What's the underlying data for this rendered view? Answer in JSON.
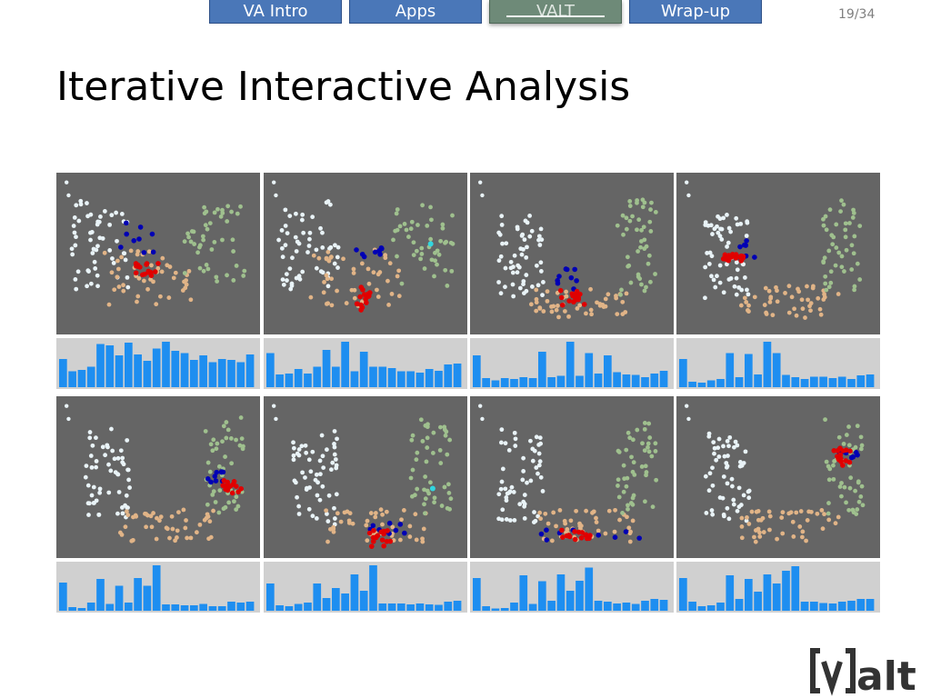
{
  "nav": {
    "tabs": [
      {
        "label": "VA Intro",
        "active": false
      },
      {
        "label": "Apps",
        "active": false
      },
      {
        "label": "VALT",
        "active": true
      },
      {
        "label": "Wrap-up",
        "active": false
      }
    ],
    "page_indicator": "19/34"
  },
  "title": "Iterative Interactive Analysis",
  "logo": {
    "text": "[v]alt"
  },
  "colors": {
    "white_cluster": "#e9f3f7",
    "orange_cluster": "#e1b487",
    "green_cluster": "#9fc08e",
    "selected_red": "#e00000",
    "selected_blue": "#0000b4",
    "cyan_point": "#31d6df",
    "histogram_bar": "#1e8ef0",
    "scatter_background": "#656565",
    "histogram_background": "#d0d0d0"
  },
  "panels": [
    {
      "red": [
        [
          0.42,
          0.59
        ],
        [
          0.47,
          0.61
        ]
      ],
      "blue": [
        [
          0.33,
          0.34
        ],
        [
          0.45,
          0.57
        ]
      ],
      "hist": [
        0.62,
        0.35,
        0.38,
        0.45,
        0.95,
        0.92,
        0.7,
        0.98,
        0.72,
        0.58,
        0.85,
        1.0,
        0.8,
        0.75,
        0.6,
        0.7,
        0.55,
        0.62,
        0.6,
        0.55,
        0.72
      ]
    },
    {
      "red": [
        [
          0.47,
          0.73
        ],
        [
          0.5,
          0.82
        ]
      ],
      "blue": [
        [
          0.48,
          0.49
        ],
        [
          0.56,
          0.49
        ]
      ],
      "cyan": [
        [
          0.82,
          0.44
        ]
      ],
      "hist": [
        0.75,
        0.28,
        0.3,
        0.4,
        0.3,
        0.45,
        0.82,
        0.45,
        1.0,
        0.35,
        0.78,
        0.45,
        0.45,
        0.42,
        0.35,
        0.35,
        0.32,
        0.4,
        0.36,
        0.5,
        0.52
      ]
    },
    {
      "red": [
        [
          0.47,
          0.74
        ],
        [
          0.55,
          0.79
        ]
      ],
      "blue": [
        [
          0.45,
          0.69
        ],
        [
          0.52,
          0.62
        ]
      ],
      "hist": [
        0.7,
        0.2,
        0.15,
        0.2,
        0.18,
        0.22,
        0.2,
        0.78,
        0.22,
        0.25,
        1.0,
        0.25,
        0.75,
        0.3,
        0.7,
        0.33,
        0.28,
        0.27,
        0.22,
        0.3,
        0.36
      ]
    },
    {
      "red": [
        [
          0.25,
          0.52
        ],
        [
          0.3,
          0.52
        ]
      ],
      "blue": [
        [
          0.3,
          0.45
        ],
        [
          0.36,
          0.5
        ]
      ],
      "hist": [
        0.62,
        0.12,
        0.1,
        0.15,
        0.18,
        0.75,
        0.22,
        0.73,
        0.28,
        1.0,
        0.75,
        0.27,
        0.22,
        0.18,
        0.23,
        0.23,
        0.2,
        0.23,
        0.18,
        0.26,
        0.28
      ]
    },
    {
      "red": [
        [
          0.84,
          0.55
        ],
        [
          0.88,
          0.59
        ]
      ],
      "blue": [
        [
          0.76,
          0.51
        ],
        [
          0.84,
          0.49
        ]
      ],
      "hist": [
        0.62,
        0.08,
        0.06,
        0.18,
        0.7,
        0.15,
        0.55,
        0.18,
        0.72,
        0.55,
        1.0,
        0.14,
        0.14,
        0.12,
        0.12,
        0.15,
        0.1,
        0.1,
        0.2,
        0.18,
        0.2
      ]
    },
    {
      "red": [
        [
          0.55,
          0.9
        ],
        [
          0.6,
          0.86
        ]
      ],
      "blue": [
        [
          0.52,
          0.79
        ],
        [
          0.68,
          0.83
        ]
      ],
      "cyan": [
        [
          0.83,
          0.57
        ]
      ],
      "hist": [
        0.6,
        0.12,
        0.1,
        0.15,
        0.18,
        0.6,
        0.28,
        0.5,
        0.38,
        0.8,
        0.44,
        1.0,
        0.16,
        0.16,
        0.16,
        0.14,
        0.16,
        0.14,
        0.13,
        0.2,
        0.22
      ]
    },
    {
      "red": [
        [
          0.48,
          0.85
        ],
        [
          0.56,
          0.86
        ]
      ],
      "blue": [
        [
          0.37,
          0.77
        ],
        [
          0.82,
          0.88
        ]
      ],
      "hist": [
        0.72,
        0.1,
        0.05,
        0.06,
        0.18,
        0.78,
        0.15,
        0.65,
        0.22,
        0.8,
        0.44,
        0.66,
        0.95,
        0.22,
        0.2,
        0.16,
        0.18,
        0.15,
        0.22,
        0.26,
        0.24
      ]
    },
    {
      "red": [
        [
          0.8,
          0.35
        ],
        [
          0.83,
          0.4
        ]
      ],
      "blue": [
        [
          0.79,
          0.35
        ],
        [
          0.86,
          0.35
        ]
      ],
      "hist": [
        0.72,
        0.2,
        0.1,
        0.12,
        0.18,
        0.78,
        0.26,
        0.7,
        0.42,
        0.8,
        0.6,
        0.88,
        0.98,
        0.2,
        0.2,
        0.17,
        0.16,
        0.2,
        0.22,
        0.26,
        0.26
      ]
    }
  ]
}
